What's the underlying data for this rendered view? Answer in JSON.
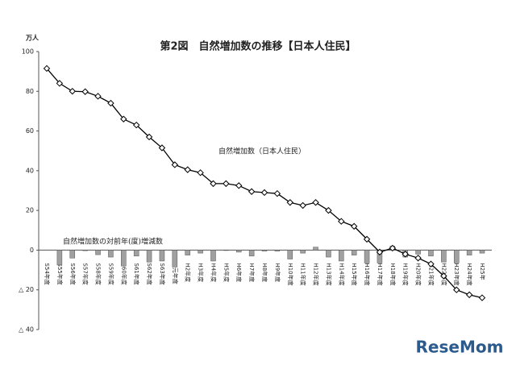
{
  "chart_data": {
    "type": "line",
    "title": "第2図　自然増加数の推移【日本人住民】",
    "y_unit": "万人",
    "watermark": "ReseMom",
    "categories": [
      "S54年度",
      "S55年度",
      "S56年度",
      "S57年度",
      "S58年度",
      "S59年度",
      "S60年度",
      "S61年度",
      "S62年度",
      "S63年度",
      "H元年度",
      "H2年度",
      "H3年度",
      "H4年度",
      "H5年度",
      "H6年度",
      "H7年度",
      "H8年度",
      "H9年度",
      "H10年度",
      "H11年度",
      "H12年度",
      "H13年度",
      "H14年度",
      "H15年度",
      "H16年度",
      "H17年度",
      "H18年度",
      "H19年度",
      "H20年度",
      "H21年度",
      "H22年度",
      "H23年度",
      "H24年度",
      "H25年"
    ],
    "series": [
      {
        "name": "自然増加数（日本人住民）",
        "type": "line",
        "color": "#000000",
        "values": [
          91.5,
          84,
          80,
          79.8,
          77.5,
          74,
          66,
          63,
          57,
          51.5,
          43,
          40.5,
          39,
          33.5,
          33.5,
          32.5,
          29.5,
          29,
          28.5,
          24,
          22.5,
          24,
          20,
          14.5,
          12,
          5.5,
          -1,
          1,
          -2,
          -4,
          -7,
          -13,
          -20,
          -22.5,
          -24
        ]
      },
      {
        "name": "自然増加数の対前年(度)増減数",
        "type": "bar",
        "color": "#a0a0a0",
        "values": [
          null,
          -7.5,
          -4,
          -0.3,
          -2.3,
          -3.5,
          -8,
          -3,
          -6,
          -5.5,
          -8.5,
          -2.5,
          -1.5,
          -5.5,
          0,
          -1,
          -3,
          -0.5,
          -0.5,
          -4.5,
          -1.5,
          1.5,
          -3.5,
          -5.5,
          -2.5,
          -6.5,
          -6.5,
          2,
          -3.5,
          -2,
          -3,
          -6,
          -6.5,
          -2.5,
          -1.5
        ]
      }
    ],
    "ylim": [
      -40,
      100
    ],
    "yticks": [
      {
        "value": -40,
        "label": "△ 40"
      },
      {
        "value": -20,
        "label": "△ 20"
      },
      0,
      20,
      40,
      60,
      80,
      100
    ],
    "grid": false
  }
}
